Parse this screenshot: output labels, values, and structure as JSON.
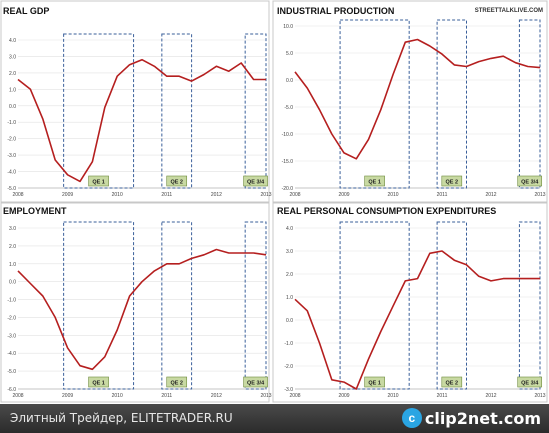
{
  "source_label": "STREETTALKLIVE.COM",
  "qe_colors": {
    "line": "#b51f1f",
    "box": "#3a5f9a",
    "tag_bg": "#c8d9a2",
    "tag_border": "#6e8a3c"
  },
  "chart_data": [
    {
      "type": "line",
      "title": "REAL GDP",
      "x_ticks": [
        "2008",
        "2009",
        "2010",
        "2011",
        "2012",
        "2013"
      ],
      "y_ticks": [
        "4.0",
        "3.0",
        "2.0",
        "1.0",
        "0.0",
        "-1.0",
        "-2.0",
        "-3.0",
        "-4.0",
        "-5.0"
      ],
      "xlim": [
        2008,
        2013
      ],
      "ylim": [
        -5,
        4
      ],
      "series": [
        {
          "x": [
            2008.0,
            2008.25,
            2008.5,
            2008.75,
            2009.0,
            2009.25,
            2009.5,
            2009.75,
            2010.0,
            2010.25,
            2010.5,
            2010.75,
            2011.0,
            2011.25,
            2011.5,
            2011.75,
            2012.0,
            2012.25,
            2012.5,
            2012.75,
            2013.0
          ],
          "y": [
            1.6,
            1.0,
            -0.8,
            -3.3,
            -4.2,
            -4.6,
            -3.4,
            -0.1,
            1.8,
            2.5,
            2.8,
            2.4,
            1.8,
            1.8,
            1.5,
            1.9,
            2.4,
            2.1,
            2.6,
            1.6,
            1.6
          ]
        }
      ],
      "qe_periods": [
        {
          "label": "QE 1",
          "start": 2008.92,
          "end": 2010.33
        },
        {
          "label": "QE 2",
          "start": 2010.9,
          "end": 2011.5
        },
        {
          "label": "QE 3/4",
          "start": 2012.58,
          "end": 2013.0
        }
      ]
    },
    {
      "type": "line",
      "title": "INDUSTRIAL PRODUCTION",
      "x_ticks": [
        "2008",
        "2009",
        "2010",
        "2011",
        "2012",
        "2013"
      ],
      "y_ticks": [
        "10.0",
        "5.0",
        "0.0",
        "-5.0",
        "-10.0",
        "-15.0",
        "-20.0"
      ],
      "xlim": [
        2008,
        2013
      ],
      "ylim": [
        -20,
        10
      ],
      "series": [
        {
          "x": [
            2008.0,
            2008.25,
            2008.5,
            2008.75,
            2009.0,
            2009.25,
            2009.5,
            2009.75,
            2010.0,
            2010.25,
            2010.5,
            2010.75,
            2011.0,
            2011.25,
            2011.5,
            2011.75,
            2012.0,
            2012.25,
            2012.5,
            2012.75,
            2013.0
          ],
          "y": [
            1.5,
            -1.5,
            -5.5,
            -10.0,
            -13.5,
            -14.6,
            -11.0,
            -5.5,
            1.0,
            7.0,
            7.5,
            6.3,
            4.8,
            2.8,
            2.5,
            3.4,
            4.0,
            4.4,
            3.2,
            2.5,
            2.3
          ]
        }
      ],
      "qe_periods": [
        {
          "label": "QE 1",
          "start": 2008.92,
          "end": 2010.33
        },
        {
          "label": "QE 2",
          "start": 2010.9,
          "end": 2011.5
        },
        {
          "label": "QE 3/4",
          "start": 2012.58,
          "end": 2013.0
        }
      ]
    },
    {
      "type": "line",
      "title": "EMPLOYMENT",
      "x_ticks": [
        "2008",
        "2009",
        "2010",
        "2011",
        "2012",
        "2013"
      ],
      "y_ticks": [
        "3.0",
        "2.0",
        "1.0",
        "0.0",
        "-1.0",
        "-2.0",
        "-3.0",
        "-4.0",
        "-5.0",
        "-6.0"
      ],
      "xlim": [
        2008,
        2013
      ],
      "ylim": [
        -6,
        3
      ],
      "series": [
        {
          "x": [
            2008.0,
            2008.25,
            2008.5,
            2008.75,
            2009.0,
            2009.25,
            2009.5,
            2009.75,
            2010.0,
            2010.25,
            2010.5,
            2010.75,
            2011.0,
            2011.25,
            2011.5,
            2011.75,
            2012.0,
            2012.25,
            2012.5,
            2012.75,
            2013.0
          ],
          "y": [
            0.6,
            -0.1,
            -0.8,
            -2.0,
            -3.7,
            -4.7,
            -4.9,
            -4.2,
            -2.7,
            -0.8,
            0.0,
            0.6,
            1.0,
            1.0,
            1.3,
            1.5,
            1.8,
            1.6,
            1.6,
            1.6,
            1.5
          ]
        }
      ],
      "qe_periods": [
        {
          "label": "QE 1",
          "start": 2008.92,
          "end": 2010.33
        },
        {
          "label": "QE 2",
          "start": 2010.9,
          "end": 2011.5
        },
        {
          "label": "QE 3/4",
          "start": 2012.58,
          "end": 2013.0
        }
      ]
    },
    {
      "type": "line",
      "title": "REAL PERSONAL CONSUMPTION EXPENDITURES",
      "x_ticks": [
        "2008",
        "2009",
        "2010",
        "2011",
        "2012",
        "2013"
      ],
      "y_ticks": [
        "4.0",
        "3.0",
        "2.0",
        "1.0",
        "0.0",
        "-1.0",
        "-2.0",
        "-3.0"
      ],
      "xlim": [
        2008,
        2013
      ],
      "ylim": [
        -3,
        4
      ],
      "series": [
        {
          "x": [
            2008.0,
            2008.25,
            2008.5,
            2008.75,
            2009.0,
            2009.25,
            2009.5,
            2009.75,
            2010.0,
            2010.25,
            2010.5,
            2010.75,
            2011.0,
            2011.25,
            2011.5,
            2011.75,
            2012.0,
            2012.25,
            2012.5,
            2012.75,
            2013.0
          ],
          "y": [
            0.9,
            0.4,
            -1.0,
            -2.6,
            -2.7,
            -3.0,
            -1.7,
            -0.5,
            0.6,
            1.7,
            1.8,
            2.9,
            3.0,
            2.6,
            2.4,
            1.9,
            1.7,
            1.8,
            1.8,
            1.8,
            1.8
          ]
        }
      ],
      "qe_periods": [
        {
          "label": "QE 1",
          "start": 2008.92,
          "end": 2010.33
        },
        {
          "label": "QE 2",
          "start": 2010.9,
          "end": 2011.5
        },
        {
          "label": "QE 3/4",
          "start": 2012.58,
          "end": 2013.0
        }
      ]
    }
  ],
  "footer": {
    "caption": "Элитный Трейдер, ELITETRADER.RU",
    "logo_badge": "c",
    "logo_text": "clip2net.com"
  }
}
